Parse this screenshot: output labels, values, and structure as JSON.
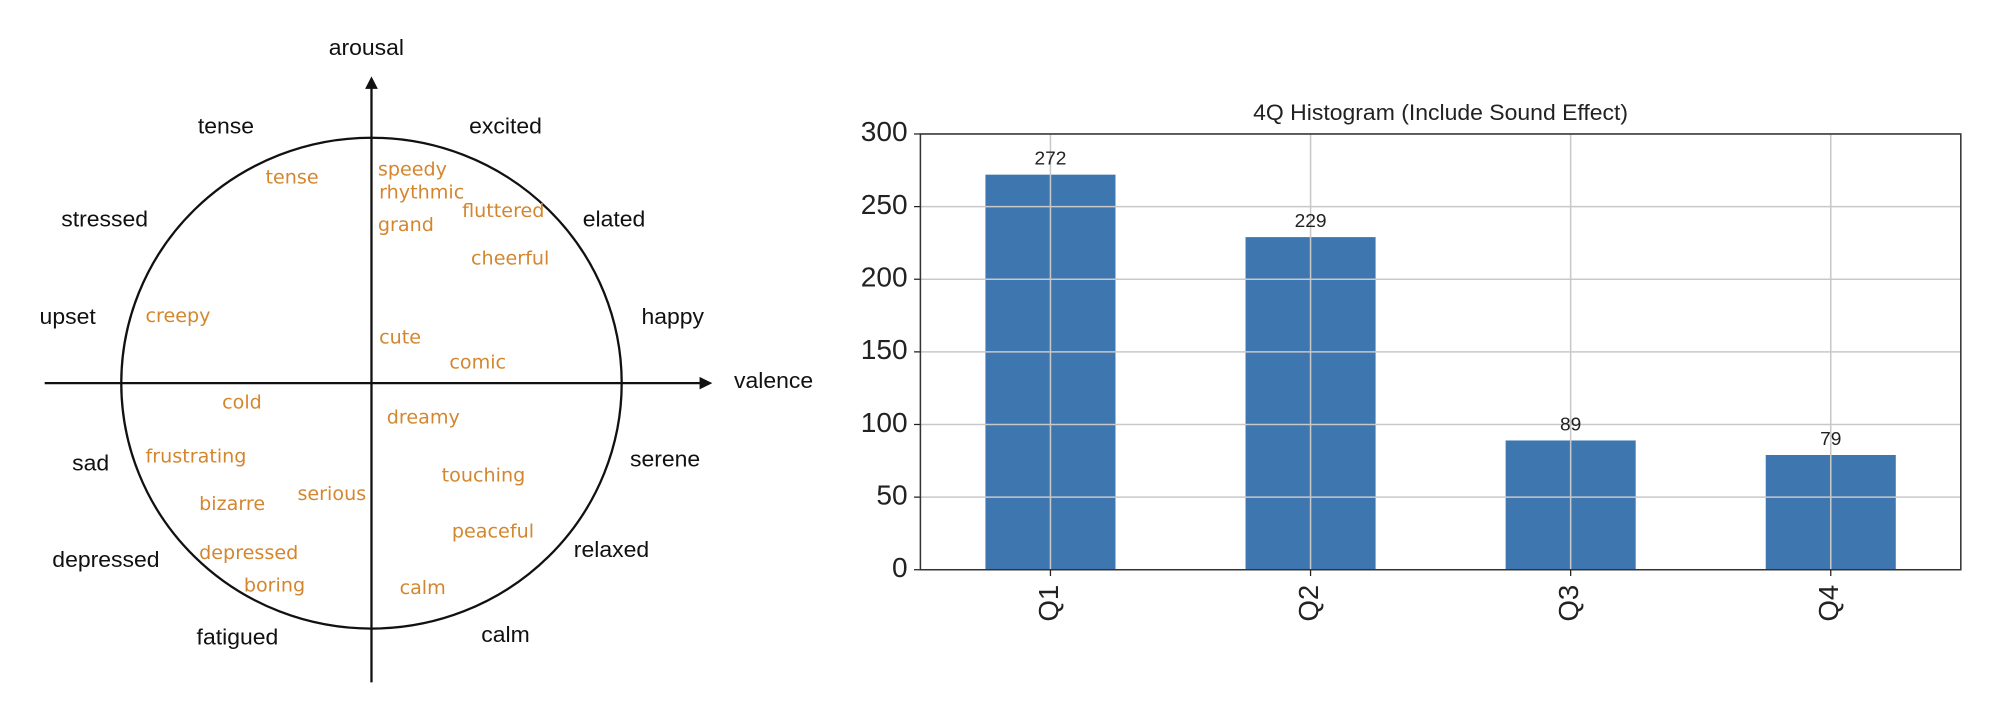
{
  "diagram": {
    "y_axis_label": "arousal",
    "x_axis_label": "valence",
    "outer_labels": [
      "tense",
      "excited",
      "stressed",
      "elated",
      "upset",
      "happy",
      "sad",
      "serene",
      "depressed",
      "relaxed",
      "fatigued",
      "calm"
    ],
    "inner_labels": [
      "tense",
      "speedy",
      "rhythmic",
      "fluttered",
      "grand",
      "cheerful",
      "creepy",
      "cute",
      "comic",
      "cold",
      "dreamy",
      "frustrating",
      "touching",
      "serious",
      "bizarre",
      "peaceful",
      "depressed",
      "boring",
      "calm"
    ]
  },
  "chart_data": {
    "type": "bar",
    "title": "4Q Histogram (Include Sound Effect)",
    "categories": [
      "Q1",
      "Q2",
      "Q3",
      "Q4"
    ],
    "values": [
      272,
      229,
      89,
      79
    ],
    "color": "#3e76b0",
    "ylim": [
      0,
      300
    ],
    "yticks": [
      0,
      50,
      100,
      150,
      200,
      250,
      300
    ],
    "grid": true
  }
}
